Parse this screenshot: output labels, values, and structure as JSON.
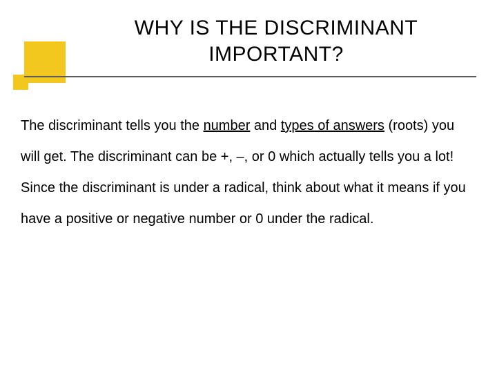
{
  "slide": {
    "title": "WHY IS THE DISCRIMINANT IMPORTANT?",
    "body": {
      "segments": [
        "The discriminant tells you the ",
        "number",
        " and ",
        "types of answers",
        " (roots) you will get. The discriminant can be +, –, or 0 which actually tells you a lot!  Since the discriminant is under a radical, think about what it means if you have a positive or negative number or 0 under the radical."
      ]
    },
    "colors": {
      "accent_yellow": "#f2c71e",
      "divider": "#5b5b5b",
      "text": "#000000",
      "background": "#ffffff"
    },
    "title_fontsize": 30,
    "body_fontsize": 20,
    "body_line_height": 2.25,
    "font_family": "Comic Sans MS"
  }
}
